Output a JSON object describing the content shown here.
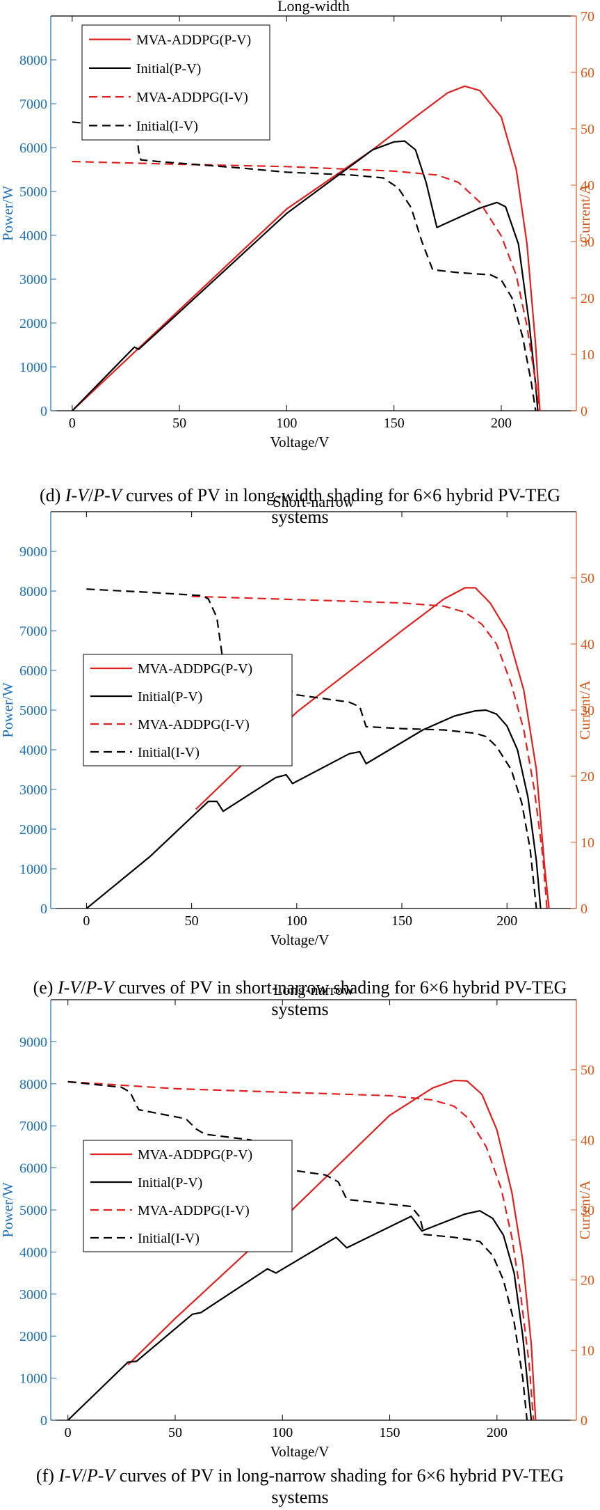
{
  "colors": {
    "left_axis": "#1f6fb5",
    "right_axis": "#d05a1d",
    "mva": "#e01f1f",
    "initial": "#000000"
  },
  "panels": [
    {
      "title": "Long-width",
      "caption_prefix": "(d) ",
      "caption_italic": "I-V",
      "caption_slash": "/",
      "caption_italic2": "P-V",
      "caption_rest_line1": " curves of PV in long-width shading for 6×6 hybrid PV-TEG",
      "caption_line2": "systems"
    },
    {
      "title": "Short-narrow",
      "caption_prefix": "(e) ",
      "caption_italic": "I-V",
      "caption_slash": "/",
      "caption_italic2": "P-V",
      "caption_rest_line1": " curves of PV in short-narrow shading for 6×6 hybrid PV-TEG",
      "caption_line2": "systems"
    },
    {
      "title": "Long-narrow",
      "caption_prefix": "(f) ",
      "caption_italic": "I-V",
      "caption_slash": "/",
      "caption_italic2": "P-V",
      "caption_rest_line1": " curves of PV in long-narrow shading for 6×6 hybrid PV-TEG",
      "caption_line2": "systems"
    }
  ],
  "chart_data": [
    {
      "type": "line",
      "title": "Long-width",
      "xlabel": "Voltage/V",
      "ylabel_left": "Power/W",
      "ylabel_right": "Current/A",
      "xlim": [
        -10,
        235
      ],
      "xticks": [
        0,
        50,
        100,
        150,
        200
      ],
      "ylim_left": [
        0,
        9000
      ],
      "yticks_left": [
        0,
        1000,
        2000,
        3000,
        4000,
        5000,
        6000,
        7000,
        8000
      ],
      "ylim_right": [
        0,
        70
      ],
      "yticks_right": [
        0,
        10,
        20,
        30,
        40,
        50,
        60,
        70
      ],
      "legend_position": "top-left",
      "series": [
        {
          "name": "MVA-ADDPG(P-V)",
          "axis": "left",
          "style": "solid",
          "color": "#e01f1f",
          "points": [
            [
              0,
              0
            ],
            [
              50,
              2300
            ],
            [
              100,
              4600
            ],
            [
              140,
              5950
            ],
            [
              160,
              6700
            ],
            [
              175,
              7250
            ],
            [
              183,
              7400
            ],
            [
              190,
              7300
            ],
            [
              200,
              6700
            ],
            [
              207,
              5500
            ],
            [
              212,
              3800
            ],
            [
              216,
              1500
            ],
            [
              218,
              0
            ]
          ]
        },
        {
          "name": "Initial(P-V)",
          "axis": "left",
          "style": "solid",
          "color": "#000000",
          "points": [
            [
              0,
              0
            ],
            [
              29,
              1450
            ],
            [
              31,
              1400
            ],
            [
              50,
              2250
            ],
            [
              100,
              4500
            ],
            [
              140,
              5950
            ],
            [
              150,
              6130
            ],
            [
              155,
              6150
            ],
            [
              160,
              5950
            ],
            [
              165,
              5200
            ],
            [
              170,
              4180
            ],
            [
              180,
              4400
            ],
            [
              190,
              4620
            ],
            [
              198,
              4750
            ],
            [
              202,
              4650
            ],
            [
              208,
              3800
            ],
            [
              213,
              2000
            ],
            [
              216,
              600
            ],
            [
              217,
              0
            ]
          ]
        },
        {
          "name": "MVA-ADDPG(I-V)",
          "axis": "right",
          "style": "dashed",
          "color": "#e01f1f",
          "points": [
            [
              0,
              44.2
            ],
            [
              50,
              43.7
            ],
            [
              100,
              43.3
            ],
            [
              150,
              42.5
            ],
            [
              170,
              41.8
            ],
            [
              180,
              40.5
            ],
            [
              190,
              37
            ],
            [
              200,
              31
            ],
            [
              207,
              24
            ],
            [
              212,
              15
            ],
            [
              216,
              5
            ],
            [
              218,
              0
            ]
          ]
        },
        {
          "name": "Initial(I-V)",
          "axis": "right",
          "style": "dashed",
          "color": "#000000",
          "points": [
            [
              0,
              51.2
            ],
            [
              25,
              50.3
            ],
            [
              30,
              49.5
            ],
            [
              31,
              46
            ],
            [
              32,
              44.5
            ],
            [
              40,
              44.2
            ],
            [
              80,
              43
            ],
            [
              100,
              42.3
            ],
            [
              130,
              41.8
            ],
            [
              145,
              41.3
            ],
            [
              152,
              39.5
            ],
            [
              158,
              36
            ],
            [
              163,
              30
            ],
            [
              168,
              25
            ],
            [
              180,
              24.5
            ],
            [
              195,
              24.1
            ],
            [
              200,
              23.2
            ],
            [
              205,
              20
            ],
            [
              210,
              13
            ],
            [
              214,
              5
            ],
            [
              216,
              0
            ]
          ]
        }
      ]
    },
    {
      "type": "line",
      "title": "Short-narrow",
      "xlabel": "Voltage/V",
      "ylabel_left": "Power/W",
      "ylabel_right": "Current/A",
      "xlim": [
        -17,
        233
      ],
      "xticks": [
        0,
        50,
        100,
        150,
        200
      ],
      "ylim_left": [
        0,
        10000
      ],
      "yticks_left": [
        0,
        1000,
        2000,
        3000,
        4000,
        5000,
        6000,
        7000,
        8000,
        9000
      ],
      "ylim_right": [
        0,
        60
      ],
      "yticks_right": [
        0,
        10,
        20,
        30,
        40,
        50
      ],
      "legend_position": "middle-left",
      "series": [
        {
          "name": "MVA-ADDPG(P-V)",
          "axis": "left",
          "style": "solid",
          "color": "#e01f1f",
          "points": [
            [
              52,
              2500
            ],
            [
              100,
              4950
            ],
            [
              150,
              7000
            ],
            [
              170,
              7800
            ],
            [
              180,
              8080
            ],
            [
              185,
              8080
            ],
            [
              192,
              7700
            ],
            [
              200,
              7000
            ],
            [
              208,
              5500
            ],
            [
              214,
              3500
            ],
            [
              218,
              1000
            ],
            [
              220,
              0
            ]
          ]
        },
        {
          "name": "Initial(P-V)",
          "axis": "left",
          "style": "solid",
          "color": "#000000",
          "points": [
            [
              0,
              0
            ],
            [
              30,
              1300
            ],
            [
              58,
              2700
            ],
            [
              62,
              2700
            ],
            [
              65,
              2450
            ],
            [
              90,
              3300
            ],
            [
              95,
              3370
            ],
            [
              98,
              3150
            ],
            [
              125,
              3900
            ],
            [
              130,
              3950
            ],
            [
              133,
              3650
            ],
            [
              160,
              4500
            ],
            [
              175,
              4850
            ],
            [
              185,
              4980
            ],
            [
              190,
              5000
            ],
            [
              195,
              4900
            ],
            [
              200,
              4600
            ],
            [
              205,
              4000
            ],
            [
              210,
              2800
            ],
            [
              214,
              1200
            ],
            [
              216,
              0
            ]
          ]
        },
        {
          "name": "MVA-ADDPG(I-V)",
          "axis": "right",
          "style": "dashed",
          "color": "#e01f1f",
          "points": [
            [
              50,
              47.2
            ],
            [
              100,
              46.7
            ],
            [
              150,
              46.2
            ],
            [
              170,
              45.7
            ],
            [
              180,
              44.8
            ],
            [
              188,
              43
            ],
            [
              195,
              40
            ],
            [
              202,
              34
            ],
            [
              208,
              27
            ],
            [
              213,
              18
            ],
            [
              217,
              8
            ],
            [
              219,
              0
            ]
          ]
        },
        {
          "name": "Initial(I-V)",
          "axis": "right",
          "style": "dashed",
          "color": "#000000",
          "points": [
            [
              0,
              48.3
            ],
            [
              30,
              47.8
            ],
            [
              55,
              47.3
            ],
            [
              58,
              46.8
            ],
            [
              62,
              44
            ],
            [
              65,
              37.2
            ],
            [
              90,
              36.2
            ],
            [
              94,
              35.8
            ],
            [
              97,
              33
            ],
            [
              100,
              32.3
            ],
            [
              125,
              31.2
            ],
            [
              130,
              30.5
            ],
            [
              133,
              27.5
            ],
            [
              150,
              27.2
            ],
            [
              170,
              27
            ],
            [
              185,
              26.5
            ],
            [
              190,
              26
            ],
            [
              195,
              24.5
            ],
            [
              202,
              21
            ],
            [
              207,
              16
            ],
            [
              211,
              9
            ],
            [
              214,
              0
            ]
          ]
        }
      ]
    },
    {
      "type": "line",
      "title": "Long-narrow",
      "xlabel": "Voltage/V",
      "ylabel_left": "Power/W",
      "ylabel_right": "Current/A",
      "xlim": [
        -8,
        237
      ],
      "xticks": [
        0,
        50,
        100,
        150,
        200
      ],
      "ylim_left": [
        0,
        10000
      ],
      "yticks_left": [
        0,
        1000,
        2000,
        3000,
        4000,
        5000,
        6000,
        7000,
        8000,
        9000
      ],
      "ylim_right": [
        0,
        60
      ],
      "yticks_right": [
        0,
        10,
        20,
        30,
        40,
        50
      ],
      "legend_position": "middle-left",
      "series": [
        {
          "name": "MVA-ADDPG(P-V)",
          "axis": "left",
          "style": "solid",
          "color": "#e01f1f",
          "points": [
            [
              28,
              1320
            ],
            [
              50,
              2420
            ],
            [
              100,
              4780
            ],
            [
              150,
              7250
            ],
            [
              170,
              7900
            ],
            [
              180,
              8080
            ],
            [
              186,
              8070
            ],
            [
              193,
              7750
            ],
            [
              200,
              6900
            ],
            [
              207,
              5400
            ],
            [
              212,
              3800
            ],
            [
              216,
              1800
            ],
            [
              218,
              0
            ]
          ]
        },
        {
          "name": "Initial(P-V)",
          "axis": "left",
          "style": "solid",
          "color": "#000000",
          "points": [
            [
              0,
              0
            ],
            [
              28,
              1380
            ],
            [
              32,
              1400
            ],
            [
              58,
              2520
            ],
            [
              62,
              2560
            ],
            [
              93,
              3600
            ],
            [
              97,
              3500
            ],
            [
              125,
              4350
            ],
            [
              130,
              4100
            ],
            [
              160,
              4850
            ],
            [
              165,
              4500
            ],
            [
              185,
              4900
            ],
            [
              192,
              4980
            ],
            [
              198,
              4800
            ],
            [
              203,
              4400
            ],
            [
              208,
              3500
            ],
            [
              212,
              2000
            ],
            [
              215,
              500
            ],
            [
              216,
              0
            ]
          ]
        },
        {
          "name": "MVA-ADDPG(I-V)",
          "axis": "right",
          "style": "dashed",
          "color": "#e01f1f",
          "points": [
            [
              0,
              48.3
            ],
            [
              50,
              47.3
            ],
            [
              100,
              46.8
            ],
            [
              150,
              46.3
            ],
            [
              170,
              45.7
            ],
            [
              180,
              44.8
            ],
            [
              187,
              43
            ],
            [
              195,
              39
            ],
            [
              202,
              33
            ],
            [
              207,
              26
            ],
            [
              211,
              18
            ],
            [
              215,
              8
            ],
            [
              217,
              0
            ]
          ]
        },
        {
          "name": "Initial(I-V)",
          "axis": "right",
          "style": "dashed",
          "color": "#000000",
          "points": [
            [
              0,
              48.3
            ],
            [
              25,
              47.5
            ],
            [
              29,
              46.8
            ],
            [
              33,
              44.3
            ],
            [
              55,
              43
            ],
            [
              60,
              41.5
            ],
            [
              64,
              40.8
            ],
            [
              85,
              40
            ],
            [
              91,
              39.2
            ],
            [
              94,
              36.5
            ],
            [
              97,
              36
            ],
            [
              120,
              35
            ],
            [
              126,
              34
            ],
            [
              130,
              31.5
            ],
            [
              160,
              30.5
            ],
            [
              164,
              29
            ],
            [
              166,
              26.5
            ],
            [
              180,
              26.1
            ],
            [
              192,
              25.5
            ],
            [
              198,
              23.5
            ],
            [
              203,
              20
            ],
            [
              208,
              14
            ],
            [
              212,
              6
            ],
            [
              214,
              0
            ]
          ]
        }
      ]
    }
  ]
}
